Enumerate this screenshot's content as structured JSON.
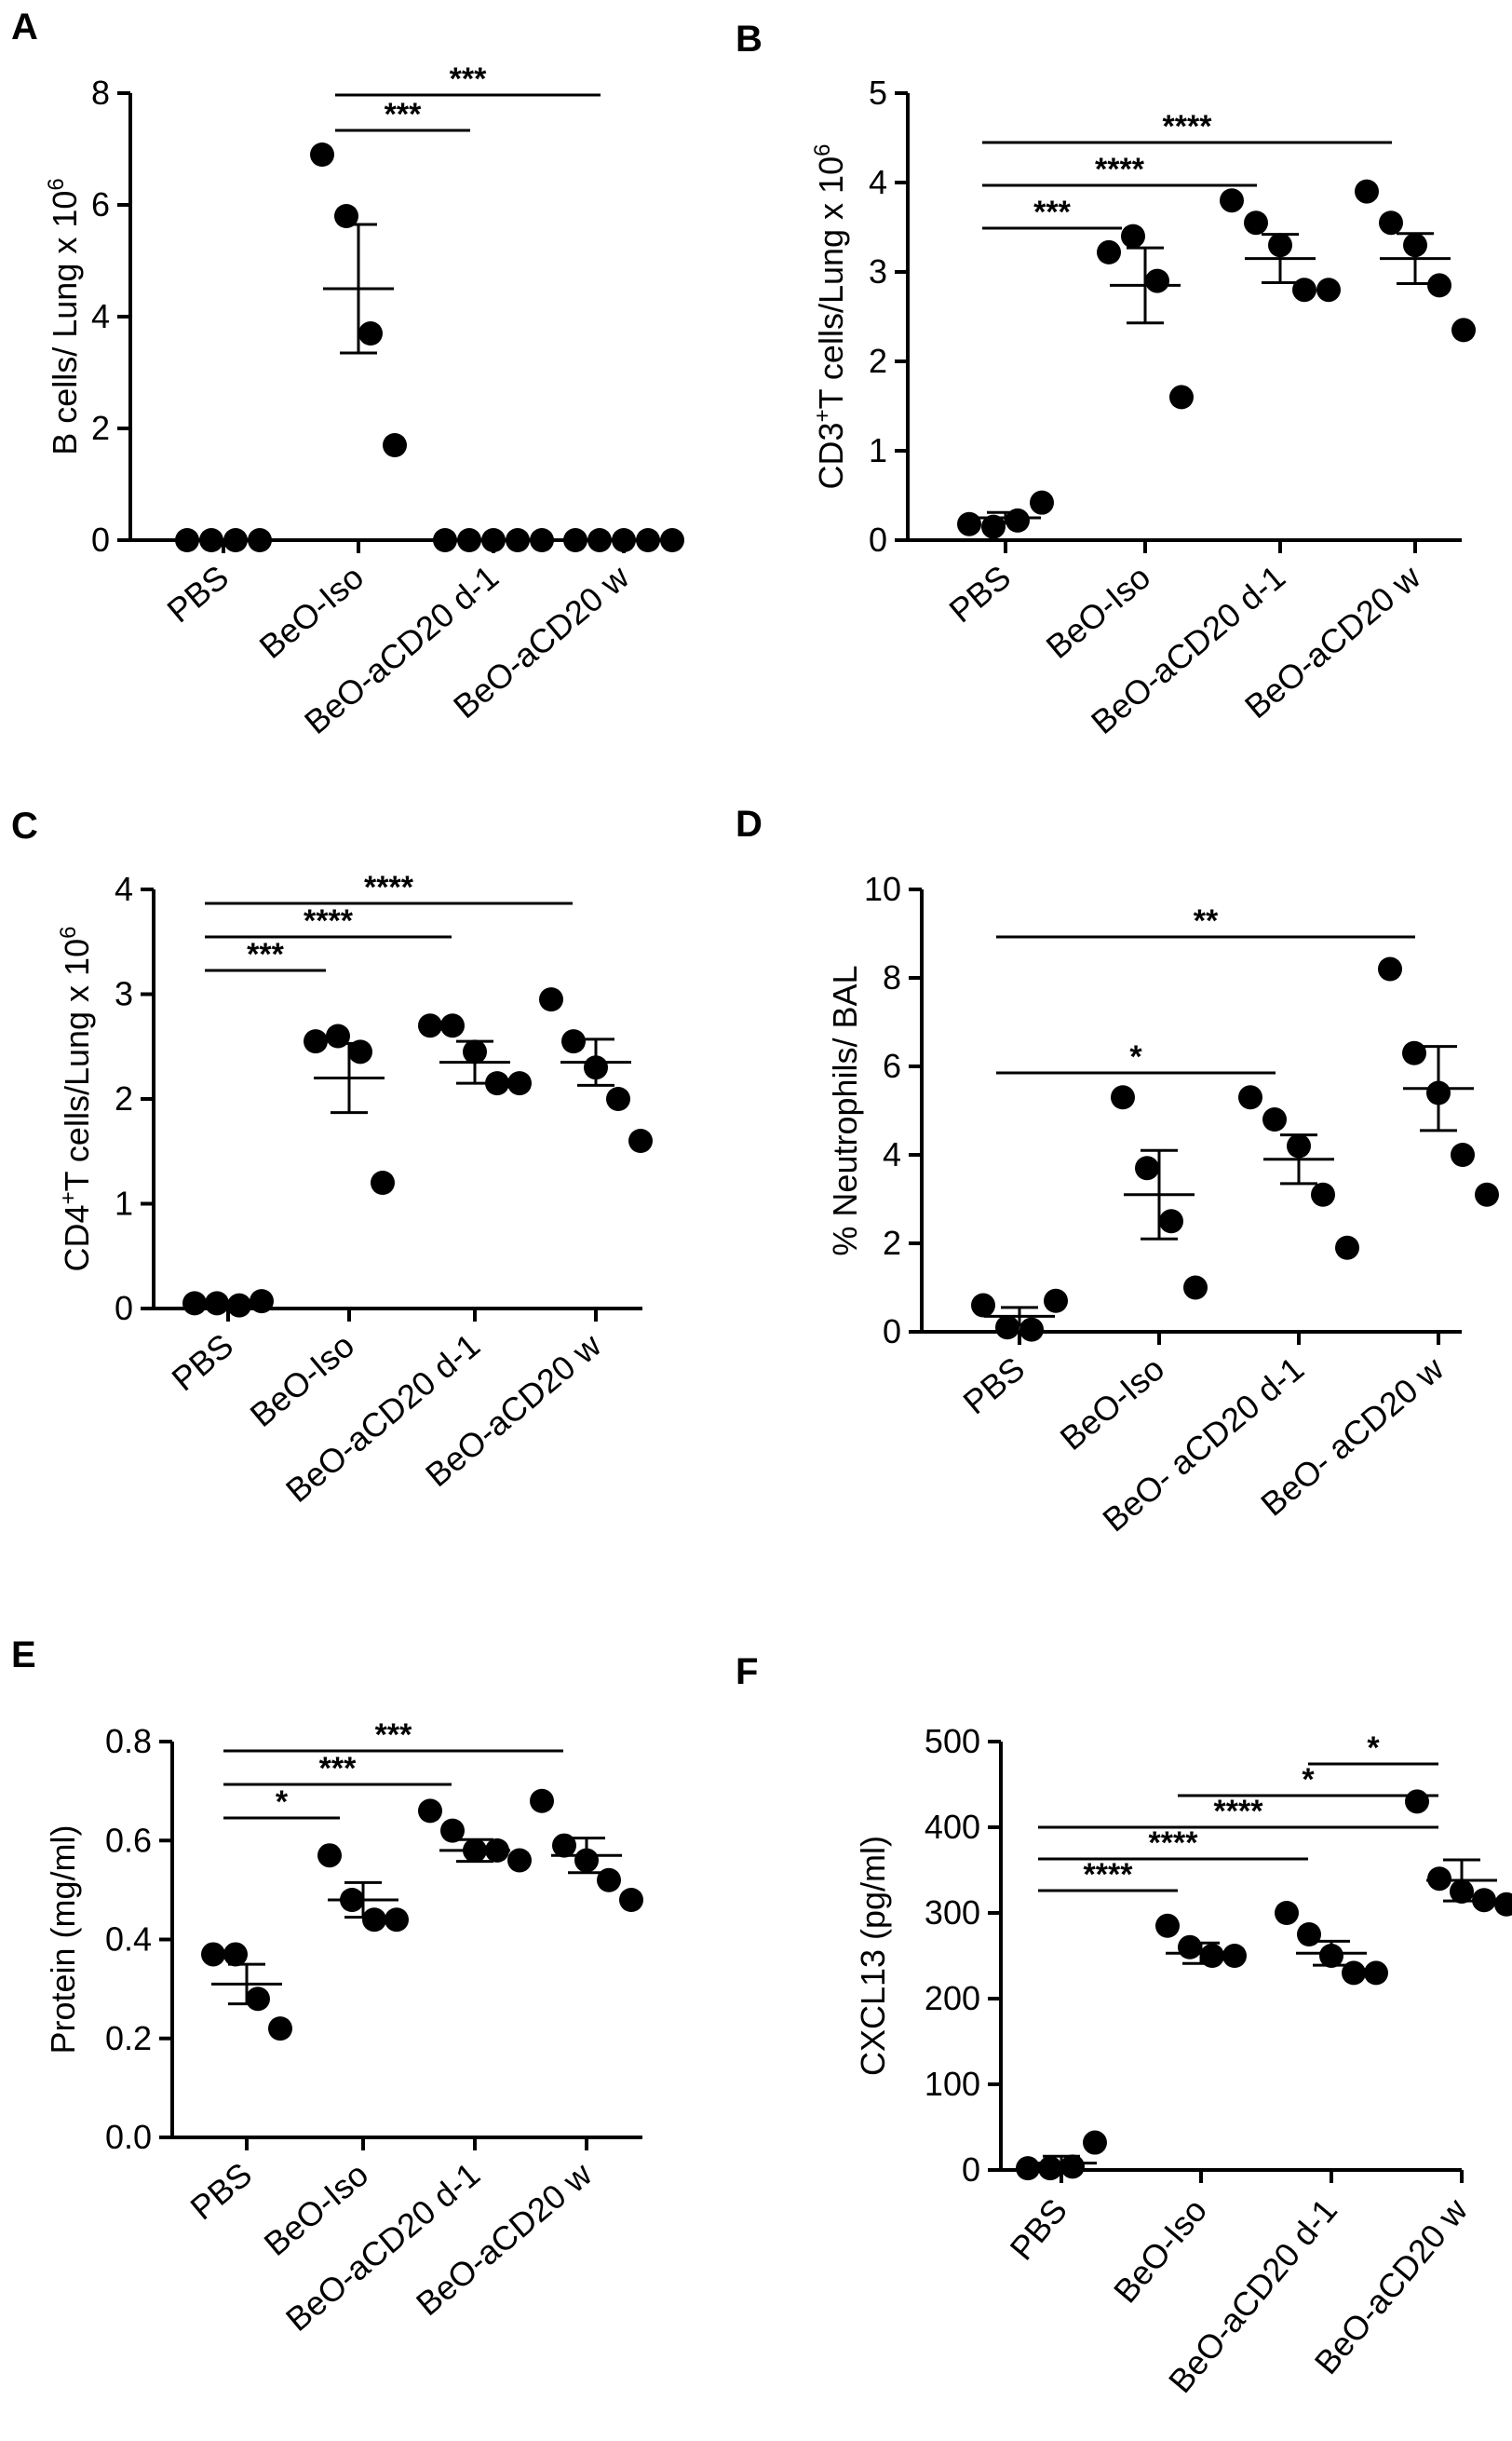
{
  "chart_data": [
    {
      "panel": "A",
      "type": "scatter",
      "ylabel_html": "B cells/ Lung x 10<sup>6</sup>",
      "ylabel_main": "B cells/ Lung x 10",
      "ylabel_sup": "6",
      "ylabel_mid": "",
      "ylim": [
        0,
        8
      ],
      "yticks": [
        "0",
        "2",
        "4",
        "6",
        "8"
      ],
      "ytick_values": [
        0,
        2,
        4,
        6,
        8
      ],
      "categories": [
        "PBS",
        "BeO-Iso",
        "BeO-aCD20 d-1",
        "BeO-aCD20 w"
      ],
      "points": [
        [
          0,
          0,
          0,
          0
        ],
        [
          6.9,
          5.8,
          3.7,
          1.7
        ],
        [
          0,
          0,
          0,
          0,
          0
        ],
        [
          0,
          0,
          0,
          0,
          0
        ]
      ],
      "means": [
        0,
        4.5,
        0,
        0
      ],
      "sem": [
        0,
        1.15,
        0,
        0
      ],
      "significance": [
        {
          "from": 1,
          "to": 2,
          "label": "***",
          "level": 0
        },
        {
          "from": 1,
          "to": 3,
          "label": "***",
          "level": 1
        }
      ]
    },
    {
      "panel": "B",
      "type": "scatter",
      "ylabel_main": "CD3",
      "ylabel_sup": "+",
      "ylabel_mid": "T cells/Lung x 10",
      "ylabel_sup2": "6",
      "ylim": [
        0,
        5
      ],
      "yticks": [
        "0",
        "1",
        "2",
        "3",
        "4",
        "5"
      ],
      "ytick_values": [
        0,
        1,
        2,
        3,
        4,
        5
      ],
      "categories": [
        "PBS",
        "BeO-Iso",
        "BeO-aCD20 d-1",
        "BeO-aCD20 w"
      ],
      "points": [
        [
          0.18,
          0.15,
          0.22,
          0.42
        ],
        [
          3.22,
          3.4,
          2.9,
          1.6
        ],
        [
          3.8,
          3.55,
          3.3,
          2.8,
          2.8
        ],
        [
          3.9,
          3.55,
          3.3,
          2.85,
          2.35
        ]
      ],
      "means": [
        0.25,
        2.85,
        3.15,
        3.15
      ],
      "sem": [
        0.06,
        0.42,
        0.27,
        0.28
      ],
      "significance": [
        {
          "from": 0,
          "to": 1,
          "label": "***",
          "level": 0
        },
        {
          "from": 0,
          "to": 2,
          "label": "****",
          "level": 1
        },
        {
          "from": 0,
          "to": 3,
          "label": "****",
          "level": 2
        }
      ]
    },
    {
      "panel": "C",
      "type": "scatter",
      "ylabel_main": "CD4",
      "ylabel_sup": "+",
      "ylabel_mid": "T cells/Lung x 10",
      "ylabel_sup2": "6",
      "ylim": [
        0,
        4
      ],
      "yticks": [
        "0",
        "1",
        "2",
        "3",
        "4"
      ],
      "ytick_values": [
        0,
        1,
        2,
        3,
        4
      ],
      "categories": [
        "PBS",
        "BeO-Iso",
        "BeO-aCD20 d-1",
        "BeO-aCD20 w"
      ],
      "points": [
        [
          0.05,
          0.05,
          0.03,
          0.07
        ],
        [
          2.55,
          2.6,
          2.45,
          1.2
        ],
        [
          2.7,
          2.7,
          2.45,
          2.15,
          2.15
        ],
        [
          2.95,
          2.55,
          2.3,
          2.0,
          1.6
        ]
      ],
      "means": [
        0.05,
        2.2,
        2.35,
        2.35
      ],
      "sem": [
        0.01,
        0.33,
        0.2,
        0.22
      ],
      "significance": [
        {
          "from": 0,
          "to": 1,
          "label": "***",
          "level": 0
        },
        {
          "from": 0,
          "to": 2,
          "label": "****",
          "level": 1
        },
        {
          "from": 0,
          "to": 3,
          "label": "****",
          "level": 2
        }
      ]
    },
    {
      "panel": "D",
      "type": "scatter",
      "ylabel_main": "% Neutrophils/ BAL",
      "ylabel_sup": "",
      "ylabel_mid": "",
      "ylim": [
        0,
        10
      ],
      "yticks": [
        "0",
        "2",
        "4",
        "6",
        "8",
        "10"
      ],
      "ytick_values": [
        0,
        2,
        4,
        6,
        8,
        10
      ],
      "categories": [
        "PBS",
        "BeO-Iso",
        "BeO- aCD20 d-1",
        "BeO- aCD20 w"
      ],
      "points": [
        [
          0.6,
          0.1,
          0.05,
          0.7
        ],
        [
          5.3,
          3.7,
          2.5,
          1.0
        ],
        [
          5.3,
          4.8,
          4.2,
          3.1,
          1.9
        ],
        [
          8.2,
          6.3,
          5.4,
          4.0,
          3.1
        ]
      ],
      "means": [
        0.35,
        3.1,
        3.9,
        5.5
      ],
      "sem": [
        0.2,
        1.0,
        0.55,
        0.95
      ],
      "significance": [
        {
          "from": 0,
          "to": 2,
          "label": "*",
          "level": 0
        },
        {
          "from": 0,
          "to": 3,
          "label": "**",
          "level": 1
        }
      ]
    },
    {
      "panel": "E",
      "type": "scatter",
      "ylabel_main": "Protein (mg/ml)",
      "ylabel_sup": "",
      "ylabel_mid": "",
      "ylim": [
        0,
        0.8
      ],
      "yticks": [
        "0.0",
        "0.2",
        "0.4",
        "0.6",
        "0.8"
      ],
      "ytick_values": [
        0,
        0.2,
        0.4,
        0.6,
        0.8
      ],
      "categories": [
        "PBS",
        "BeO-Iso",
        "BeO-aCD20 d-1",
        "BeO-aCD20 w"
      ],
      "points": [
        [
          0.37,
          0.37,
          0.28,
          0.22
        ],
        [
          0.57,
          0.48,
          0.44,
          0.44
        ],
        [
          0.66,
          0.62,
          0.58,
          0.58,
          0.56
        ],
        [
          0.68,
          0.59,
          0.56,
          0.52,
          0.48
        ]
      ],
      "means": [
        0.31,
        0.48,
        0.58,
        0.57
      ],
      "sem": [
        0.04,
        0.035,
        0.022,
        0.035
      ],
      "significance": [
        {
          "from": 0,
          "to": 1,
          "label": "*",
          "level": 0
        },
        {
          "from": 0,
          "to": 2,
          "label": "***",
          "level": 1
        },
        {
          "from": 0,
          "to": 3,
          "label": "***",
          "level": 2
        }
      ]
    },
    {
      "panel": "F",
      "type": "scatter",
      "ylabel_main": "CXCL13 (pg/ml)",
      "ylabel_sup": "",
      "ylabel_mid": "",
      "ylim": [
        0,
        500
      ],
      "yticks": [
        "0",
        "100",
        "200",
        "300",
        "400",
        "500"
      ],
      "ytick_values": [
        0,
        100,
        200,
        300,
        400,
        500
      ],
      "categories": [
        "PBS",
        "BeO-Iso",
        "BeO-aCD20 d-1",
        "BeO-aCD20 w"
      ],
      "points": [
        [
          2,
          2,
          4,
          32
        ],
        [
          285,
          260,
          250,
          250
        ],
        [
          300,
          275,
          250,
          230,
          230
        ],
        [
          430,
          340,
          325,
          315,
          310
        ]
      ],
      "means": [
        8,
        253,
        253,
        338
      ],
      "sem": [
        8,
        12,
        14,
        24
      ],
      "significance": [
        {
          "from": 0,
          "to": 1,
          "label": "****",
          "level": 0
        },
        {
          "from": 0,
          "to": 2,
          "label": "****",
          "level": 1
        },
        {
          "from": 0,
          "to": 3,
          "label": "****",
          "level": 2
        },
        {
          "from": 1,
          "to": 3,
          "label": "*",
          "level": 3
        },
        {
          "from": 2,
          "to": 3,
          "label": "*",
          "level": 4
        }
      ]
    }
  ]
}
